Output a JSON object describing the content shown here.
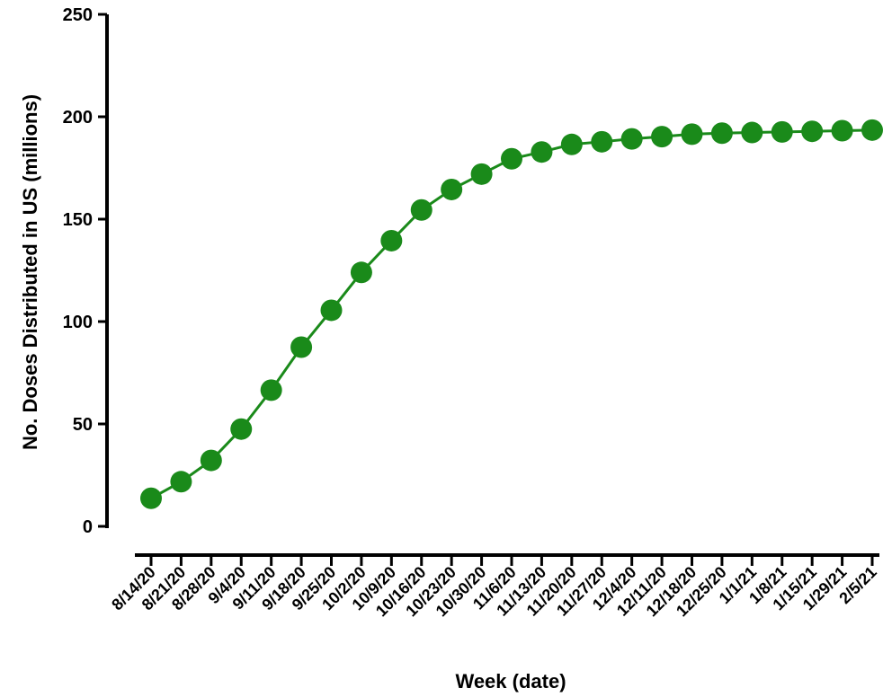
{
  "chart_data": {
    "type": "line",
    "title": "",
    "xlabel": "Week (date)",
    "ylabel": "No. Doses Distributed in US (millions)",
    "ylim": [
      0,
      250
    ],
    "yticks": [
      0,
      50,
      100,
      150,
      200,
      250
    ],
    "grid": false,
    "legend": "none",
    "categories": [
      "8/14/20",
      "8/21/20",
      "8/28/20",
      "9/4/20",
      "9/11/20",
      "9/18/20",
      "9/25/20",
      "10/2/20",
      "10/9/20",
      "10/16/20",
      "10/23/20",
      "10/30/20",
      "11/6/20",
      "11/13/20",
      "11/20/20",
      "11/27/20",
      "12/4/20",
      "12/11/20",
      "12/18/20",
      "12/25/20",
      "1/1/21",
      "1/8/21",
      "1/15/21",
      "1/29/21",
      "2/5/21"
    ],
    "series": [
      {
        "color": "#1a8a1a",
        "values": [
          13.7,
          21.8,
          32.2,
          47.5,
          66.5,
          87.5,
          105.5,
          124.0,
          139.5,
          154.5,
          164.5,
          172.0,
          179.5,
          182.8,
          186.5,
          187.8,
          189.2,
          190.3,
          191.5,
          192.0,
          192.3,
          192.6,
          192.9,
          193.2,
          193.5
        ]
      }
    ]
  }
}
